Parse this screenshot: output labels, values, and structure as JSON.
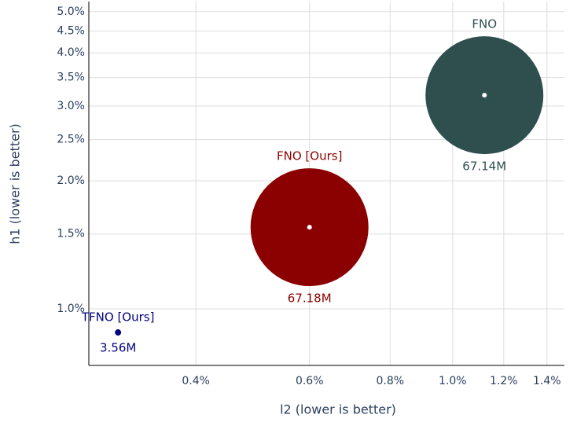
{
  "chart_data": {
    "type": "bubble",
    "xlabel": "l2 (lower is better)",
    "ylabel": "h1 (lower is better)",
    "xlog": true,
    "ylog": true,
    "grid": true,
    "xlim": [
      0.273,
      1.49
    ],
    "ylim": [
      0.736,
      5.28
    ],
    "xticks": [
      {
        "value": 0.4,
        "label": "0.4%"
      },
      {
        "value": 0.6,
        "label": "0.6%"
      },
      {
        "value": 0.8,
        "label": "0.8%"
      },
      {
        "value": 1.0,
        "label": "1.0%"
      },
      {
        "value": 1.2,
        "label": "1.2%"
      },
      {
        "value": 1.4,
        "label": "1.4%"
      }
    ],
    "yticks": [
      {
        "value": 1.0,
        "label": "1.0%"
      },
      {
        "value": 1.5,
        "label": "1.5%"
      },
      {
        "value": 2.0,
        "label": "2.0%"
      },
      {
        "value": 2.5,
        "label": "2.5%"
      },
      {
        "value": 3.0,
        "label": "3.0%"
      },
      {
        "value": 3.5,
        "label": "3.5%"
      },
      {
        "value": 4.0,
        "label": "4.0%"
      },
      {
        "value": 4.5,
        "label": "4.5%"
      },
      {
        "value": 5.0,
        "label": "5.0%"
      }
    ],
    "series": [
      {
        "name": "TFNO [Ours]",
        "color": "#000080",
        "x": [
          0.303
        ],
        "values": [
          0.88
        ],
        "sizes": [
          3.56
        ],
        "value_labels": [
          "3.56M"
        ]
      },
      {
        "name": "FNO [Ours]",
        "color": "#8b0000",
        "x": [
          0.6
        ],
        "values": [
          1.556
        ],
        "sizes": [
          67.18
        ],
        "value_labels": [
          "67.18M"
        ]
      },
      {
        "name": "FNO",
        "color": "#2f4f4f",
        "x": [
          1.12
        ],
        "values": [
          3.18
        ],
        "sizes": [
          67.14
        ],
        "value_labels": [
          "67.14M"
        ]
      }
    ]
  }
}
